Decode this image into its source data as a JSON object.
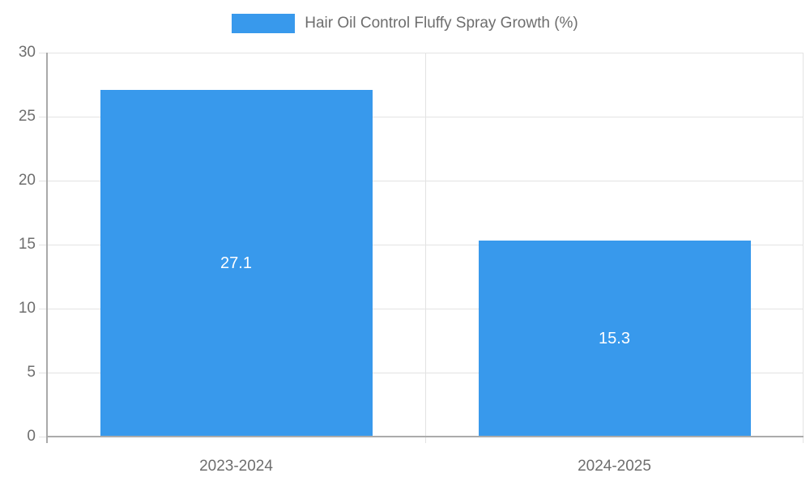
{
  "chart_data": {
    "type": "bar",
    "title": "Hair Oil Control Fluffy Spray Growth (%)",
    "categories": [
      "2023-2024",
      "2024-2025"
    ],
    "values": [
      27.1,
      15.3
    ],
    "xlabel": "",
    "ylabel": "",
    "ylim": [
      0,
      30
    ],
    "y_ticks": [
      0,
      5,
      10,
      15,
      20,
      25,
      30
    ],
    "grid": true,
    "legend_position": "top",
    "colors": {
      "bar": "#3899ec",
      "value_label": "#ffffff",
      "gridline": "#e3e3e3",
      "axis_line": "#a9a9a9",
      "baseline": "#ababab",
      "tick_text": "#6e6e6e",
      "background": "#ffffff"
    }
  }
}
